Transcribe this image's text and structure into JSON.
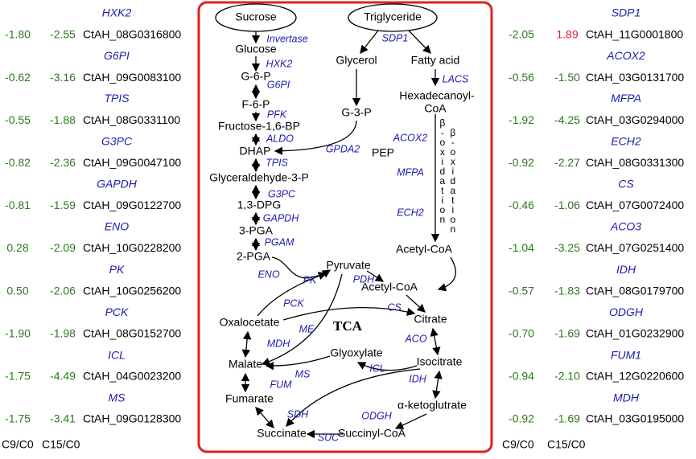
{
  "value_color": "#2a7a1c",
  "left_panel": {
    "rows": [
      {
        "enzyme": "HXK2",
        "c9": "-1.80",
        "c15": "-2.55",
        "gene": "CtAH_08G0316800"
      },
      {
        "enzyme": "G6PI",
        "c9": "-0.62",
        "c15": "-3.16",
        "gene": "CtAH_09G0083100"
      },
      {
        "enzyme": "TPIS",
        "c9": "-0.55",
        "c15": "-1.88",
        "gene": "CtAH_08G0331100"
      },
      {
        "enzyme": "G3PC",
        "c9": "-0.82",
        "c15": "-2.36",
        "gene": "CtAH_09G0047100"
      },
      {
        "enzyme": "GAPDH",
        "c9": "-0.81",
        "c15": "-1.59",
        "gene": "CtAH_09G0122700"
      },
      {
        "enzyme": "ENO",
        "c9": "0.28",
        "c15": "-2.09",
        "gene": "CtAH_10G0228200"
      },
      {
        "enzyme": "PK",
        "c9": "0.50",
        "c15": "-2.06",
        "gene": "CtAH_10G0256200"
      },
      {
        "enzyme": "PCK",
        "c9": "-1.90",
        "c15": "-1.98",
        "gene": "CtAH_08G0152700"
      },
      {
        "enzyme": "ICL",
        "c9": "-1.75",
        "c15": "-4.49",
        "gene": "CtAH_04G0023200"
      },
      {
        "enzyme": "MS",
        "c9": "-1.75",
        "c15": "-3.41",
        "gene": "CtAH_09G0128300"
      }
    ],
    "footer": [
      "C9/C0",
      "C15/C0"
    ]
  },
  "right_panel": {
    "rows": [
      {
        "enzyme": "SDP1",
        "c9": "-2.05",
        "c15": "1.89",
        "c15_color": "#e02020",
        "gene": "CtAH_11G0001800"
      },
      {
        "enzyme": "ACOX2",
        "c9": "-0.56",
        "c15": "-1.50",
        "gene": "CtAH_03G0131700"
      },
      {
        "enzyme": "MFPA",
        "c9": "-1.92",
        "c15": "-4.25",
        "gene": "CtAH_03G0294000"
      },
      {
        "enzyme": "ECH2",
        "c9": "-0.92",
        "c15": "-2.27",
        "gene": "CtAH_08G0331300"
      },
      {
        "enzyme": "CS",
        "c9": "-0.46",
        "c15": "-1.06",
        "gene": "CtAH_07G0072400"
      },
      {
        "enzyme": "ACO3",
        "c9": "-1.04",
        "c15": "-3.25",
        "gene": "CtAH_07G0251400"
      },
      {
        "enzyme": "IDH",
        "c9": "-0.57",
        "c15": "-1.83",
        "gene": "CtAH_08G0179700"
      },
      {
        "enzyme": "ODGH",
        "c9": "-0.70",
        "c15": "-1.69",
        "gene": "CtAH_01G0232900"
      },
      {
        "enzyme": "FUM1",
        "c9": "-0.94",
        "c15": "-2.10",
        "gene": "CtAH_12G0220600"
      },
      {
        "enzyme": "MDH",
        "c9": "-0.92",
        "c15": "-1.69",
        "gene": "CtAH_03G0195000"
      }
    ],
    "footer": [
      "C9/C0",
      "C15/C0"
    ]
  },
  "pathway": {
    "metabolites": [
      "Sucrose",
      "Triglyceride",
      "Glucose",
      "G-6-P",
      "F-6-P",
      "Fructose-1,6-BP",
      "DHAP",
      "Glyceraldehyde-3-P",
      "1,3-DPG",
      "3-PGA",
      "2-PGA",
      "Glycerol",
      "G-3-P",
      "Fatty acid",
      "Hexadecanoyl-",
      "CoA",
      "PEP",
      "Acetyl-CoA",
      "Pyruvate",
      "Acetyl-CoA",
      "Citrate",
      "Oxalocetate",
      "Isocitrate",
      "Glyoxylate",
      "Malate",
      "α-ketoglutrate",
      "Fumarate",
      "Succinate",
      "Succinyl-CoA"
    ],
    "enzymes": [
      "Invertase",
      "SDP1",
      "HXK2",
      "G6PI",
      "LACS",
      "PFK",
      "ALDO",
      "GPDA2",
      "ACOX2",
      "TPIS",
      "MFPA",
      "G3PC",
      "GAPDH",
      "ECH2",
      "PGAM",
      "ENO",
      "PK",
      "PDH",
      "PCK",
      "CS",
      "ME",
      "MDH",
      "ACO",
      "ICL",
      "IDH",
      "MS",
      "FUM",
      "SDH",
      "ODGH",
      "SUC"
    ],
    "center_label": "TCA",
    "beta_oxidation": [
      "β-oxidation",
      "β-oxidation"
    ]
  }
}
